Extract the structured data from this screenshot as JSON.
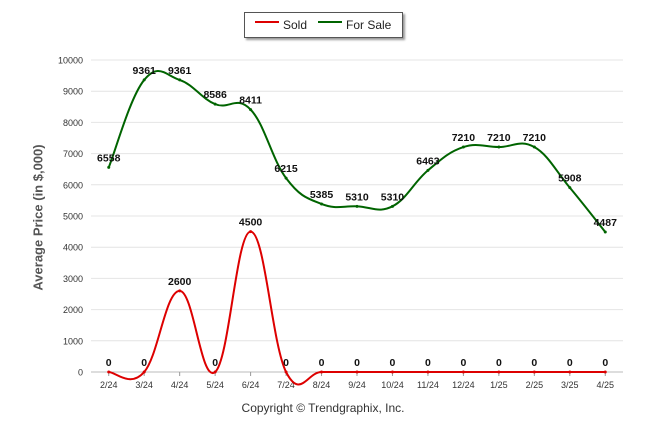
{
  "chart_data": {
    "type": "line",
    "categories": [
      "2/24",
      "3/24",
      "4/24",
      "5/24",
      "6/24",
      "7/24",
      "8/24",
      "9/24",
      "10/24",
      "11/24",
      "12/24",
      "1/25",
      "2/25",
      "3/25",
      "4/25"
    ],
    "series": [
      {
        "name": "Sold",
        "color": "#dd0000",
        "values": [
          0,
          0,
          2600,
          0,
          4500,
          0,
          0,
          0,
          0,
          0,
          0,
          0,
          0,
          0,
          0
        ],
        "labels": [
          "0",
          "0",
          "2600",
          "0",
          "4500",
          "0",
          "0",
          "0",
          "0",
          "0",
          "0",
          "0",
          "0",
          "0",
          "0"
        ]
      },
      {
        "name": "For Sale",
        "color": "#006400",
        "values": [
          6558,
          9361,
          9361,
          8586,
          8411,
          6215,
          5385,
          5310,
          5310,
          6463,
          7210,
          7210,
          7210,
          5908,
          4487
        ],
        "labels": [
          "6558",
          "9361",
          "9361",
          "8586",
          "8411",
          "6215",
          "5385",
          "5310",
          "5310",
          "6463",
          "7210",
          "7210",
          "7210",
          "5908",
          "4487"
        ]
      }
    ],
    "ylabel": "Average Price (in $,000)",
    "ylim": [
      0,
      10000
    ],
    "yticks": [
      "0",
      "1000",
      "2000",
      "3000",
      "4000",
      "5000",
      "6000",
      "7000",
      "8000",
      "9000",
      "10000"
    ],
    "grid": true,
    "legend": "top-center"
  },
  "copyright": "Copyright © Trendgraphix, Inc."
}
